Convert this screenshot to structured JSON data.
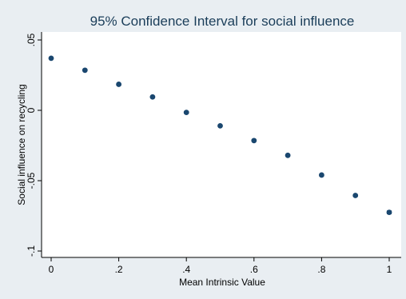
{
  "chart_data": {
    "type": "scatter",
    "title": "95% Confidence Interval for social influence",
    "xlabel": "Mean Intrinsic Value",
    "ylabel": "Social influence on recycling",
    "xlim": [
      0,
      1
    ],
    "ylim": [
      -0.1,
      0.05
    ],
    "xticks": [
      {
        "value": 0,
        "label": "0"
      },
      {
        "value": 0.2,
        "label": ".2"
      },
      {
        "value": 0.4,
        "label": ".4"
      },
      {
        "value": 0.6,
        "label": ".6"
      },
      {
        "value": 0.8,
        "label": ".8"
      },
      {
        "value": 1,
        "label": "1"
      }
    ],
    "yticks": [
      {
        "value": -0.1,
        "label": "-.1"
      },
      {
        "value": -0.05,
        "label": "-.05"
      },
      {
        "value": 0,
        "label": "0"
      },
      {
        "value": 0.05,
        "label": ".05"
      }
    ],
    "grid": false,
    "series": [
      {
        "points": [
          {
            "x": 0.0,
            "y": 0.037,
            "lo": 0.0365,
            "hi": 0.0375
          },
          {
            "x": 0.1,
            "y": 0.0285,
            "lo": 0.028,
            "hi": 0.029
          },
          {
            "x": 0.2,
            "y": 0.0185,
            "lo": 0.018,
            "hi": 0.019
          },
          {
            "x": 0.3,
            "y": 0.0095,
            "lo": 0.009,
            "hi": 0.01
          },
          {
            "x": 0.4,
            "y": -0.0015,
            "lo": -0.002,
            "hi": -0.001
          },
          {
            "x": 0.5,
            "y": -0.011,
            "lo": -0.0115,
            "hi": -0.0105
          },
          {
            "x": 0.6,
            "y": -0.0215,
            "lo": -0.022,
            "hi": -0.021
          },
          {
            "x": 0.7,
            "y": -0.032,
            "lo": -0.0325,
            "hi": -0.0315
          },
          {
            "x": 0.8,
            "y": -0.046,
            "lo": -0.0465,
            "hi": -0.0455
          },
          {
            "x": 0.9,
            "y": -0.0605,
            "lo": -0.061,
            "hi": -0.06
          },
          {
            "x": 1.0,
            "y": -0.0725,
            "lo": -0.0735,
            "hi": -0.0715
          }
        ]
      }
    ]
  },
  "colors": {
    "outer_background": "#e9eef2",
    "plot_background": "#ffffff",
    "title": "#1a3d59",
    "marker": "#1a476f",
    "axis": "#000000"
  }
}
